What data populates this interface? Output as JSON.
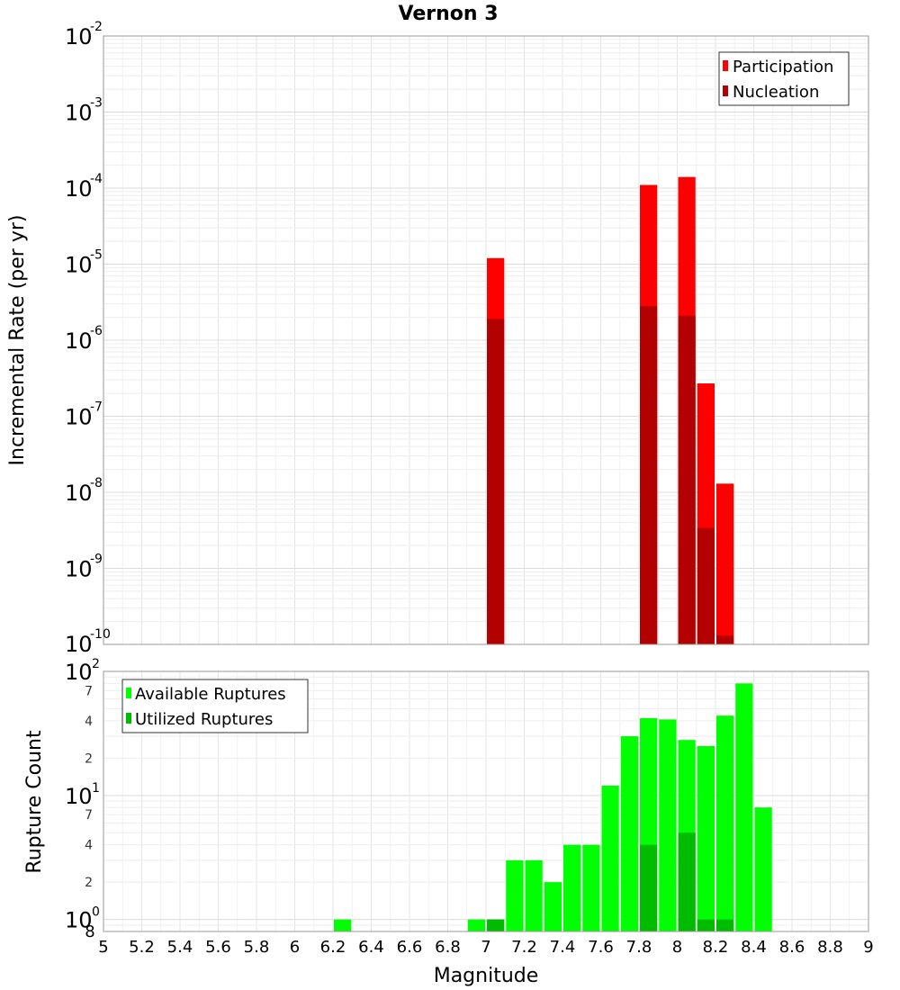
{
  "chart_data": [
    {
      "type": "bar",
      "title": "Vernon 3",
      "xlabel": "",
      "ylabel": "Incremental Rate (per yr)",
      "xlim": [
        5,
        9
      ],
      "ylim": [
        1e-10,
        0.01
      ],
      "yscale": "log",
      "grid": true,
      "legend_position": "top-right",
      "bin_width": 0.1,
      "y_ticks": [
        {
          "base": "10",
          "exp": "-2"
        },
        {
          "base": "10",
          "exp": "-3"
        },
        {
          "base": "10",
          "exp": "-4"
        },
        {
          "base": "10",
          "exp": "-5"
        },
        {
          "base": "10",
          "exp": "-6"
        },
        {
          "base": "10",
          "exp": "-7"
        },
        {
          "base": "10",
          "exp": "-8"
        },
        {
          "base": "10",
          "exp": "-9"
        },
        {
          "base": "10",
          "exp": "-10"
        }
      ],
      "series": [
        {
          "name": "Participation",
          "color": "#ff0000",
          "x": [
            7.05,
            7.85,
            8.05,
            8.15,
            8.25
          ],
          "values": [
            1.2e-05,
            0.00011,
            0.00014,
            2.7e-07,
            1.3e-08
          ]
        },
        {
          "name": "Nucleation",
          "color": "#b30000",
          "x": [
            7.05,
            7.85,
            8.05,
            8.15,
            8.25
          ],
          "values": [
            1.9e-06,
            2.8e-06,
            2.1e-06,
            3.4e-09,
            1.3e-10
          ]
        }
      ]
    },
    {
      "type": "bar",
      "title": "",
      "xlabel": "Magnitude",
      "ylabel": "Rupture Count",
      "xlim": [
        5,
        9
      ],
      "ylim": [
        0.8,
        100
      ],
      "yscale": "log",
      "grid": true,
      "legend_position": "top-left",
      "bin_width": 0.1,
      "y_ticks": [
        {
          "base": "10",
          "exp": "2",
          "small": ""
        },
        {
          "base": "",
          "exp": "",
          "small": "7"
        },
        {
          "base": "",
          "exp": "",
          "small": "4"
        },
        {
          "base": "",
          "exp": "",
          "small": "2"
        },
        {
          "base": "10",
          "exp": "1",
          "small": ""
        },
        {
          "base": "",
          "exp": "",
          "small": "7"
        },
        {
          "base": "",
          "exp": "",
          "small": "4"
        },
        {
          "base": "",
          "exp": "",
          "small": "2"
        },
        {
          "base": "10",
          "exp": "0",
          "small": ""
        },
        {
          "base": "8",
          "exp": "",
          "small": ""
        }
      ],
      "x_ticks": [
        "5",
        "5.2",
        "5.4",
        "5.6",
        "5.8",
        "6",
        "6.2",
        "6.4",
        "6.6",
        "6.8",
        "7",
        "7.2",
        "7.4",
        "7.6",
        "7.8",
        "8",
        "8.2",
        "8.4",
        "8.6",
        "8.8",
        "9"
      ],
      "series": [
        {
          "name": "Available Ruptures",
          "color": "#00ff00",
          "x": [
            6.25,
            6.95,
            7.05,
            7.15,
            7.25,
            7.35,
            7.45,
            7.55,
            7.65,
            7.75,
            7.85,
            7.95,
            8.05,
            8.15,
            8.25,
            8.35,
            8.45
          ],
          "values": [
            1,
            1,
            1,
            3,
            3,
            2,
            4,
            4,
            12,
            30,
            42,
            41,
            28,
            25,
            44,
            80,
            8
          ]
        },
        {
          "name": "Utilized Ruptures",
          "color": "#00bb00",
          "x": [
            7.05,
            7.85,
            8.05,
            8.15,
            8.25
          ],
          "values": [
            1,
            4,
            5,
            1,
            1
          ]
        }
      ]
    }
  ]
}
